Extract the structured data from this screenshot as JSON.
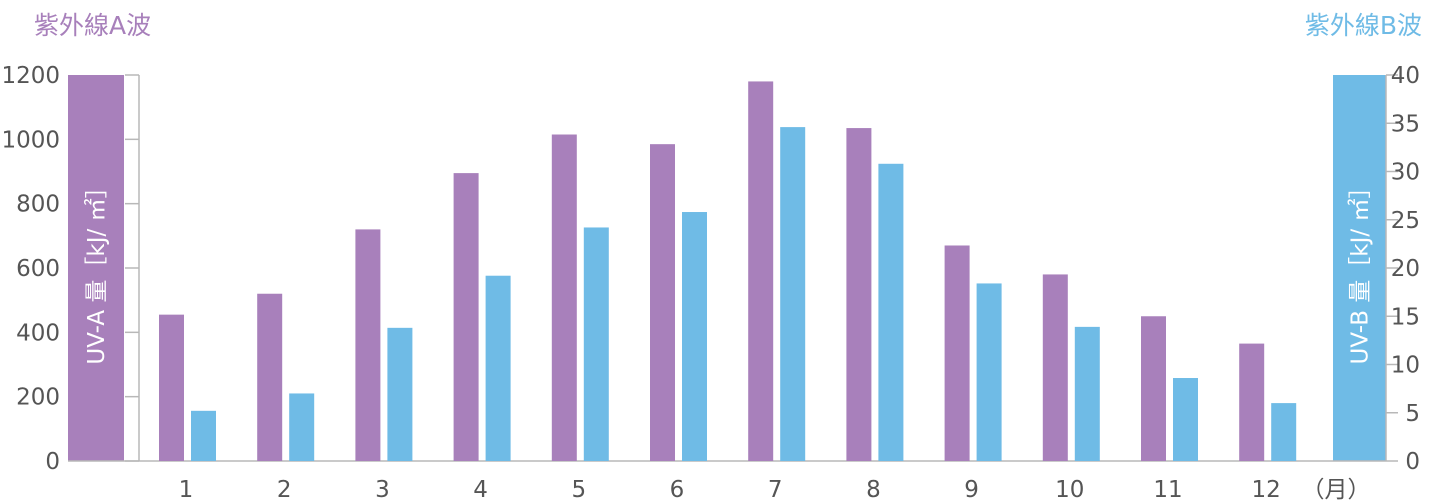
{
  "colors": {
    "uva": "#a880bb",
    "uvb": "#6fbbe6",
    "axis": "#b8b8b8",
    "text": "#555555"
  },
  "chart_data": {
    "type": "bar",
    "categories": [
      "1",
      "2",
      "3",
      "4",
      "5",
      "6",
      "7",
      "8",
      "9",
      "10",
      "11",
      "12"
    ],
    "x_unit_label": "（月）",
    "series": [
      {
        "name": "紫外線A波",
        "axis": "left",
        "values": [
          455,
          520,
          720,
          895,
          1015,
          985,
          1180,
          1035,
          670,
          580,
          450,
          365
        ]
      },
      {
        "name": "紫外線B波",
        "axis": "right",
        "values": [
          5.2,
          7.0,
          13.8,
          19.2,
          24.2,
          25.8,
          34.6,
          30.8,
          18.4,
          13.9,
          8.6,
          6.0
        ]
      }
    ],
    "left_axis": {
      "label": "UV-A 量［kJ/ ㎡］",
      "ylim": [
        0,
        1200
      ],
      "ticks": [
        0,
        200,
        400,
        600,
        800,
        1000,
        1200
      ]
    },
    "right_axis": {
      "label": "UV-B 量［kJ/ ㎡］",
      "ylim": [
        0,
        40
      ],
      "ticks": [
        0,
        5,
        10,
        15,
        20,
        25,
        30,
        35,
        40
      ]
    },
    "grid": false
  }
}
